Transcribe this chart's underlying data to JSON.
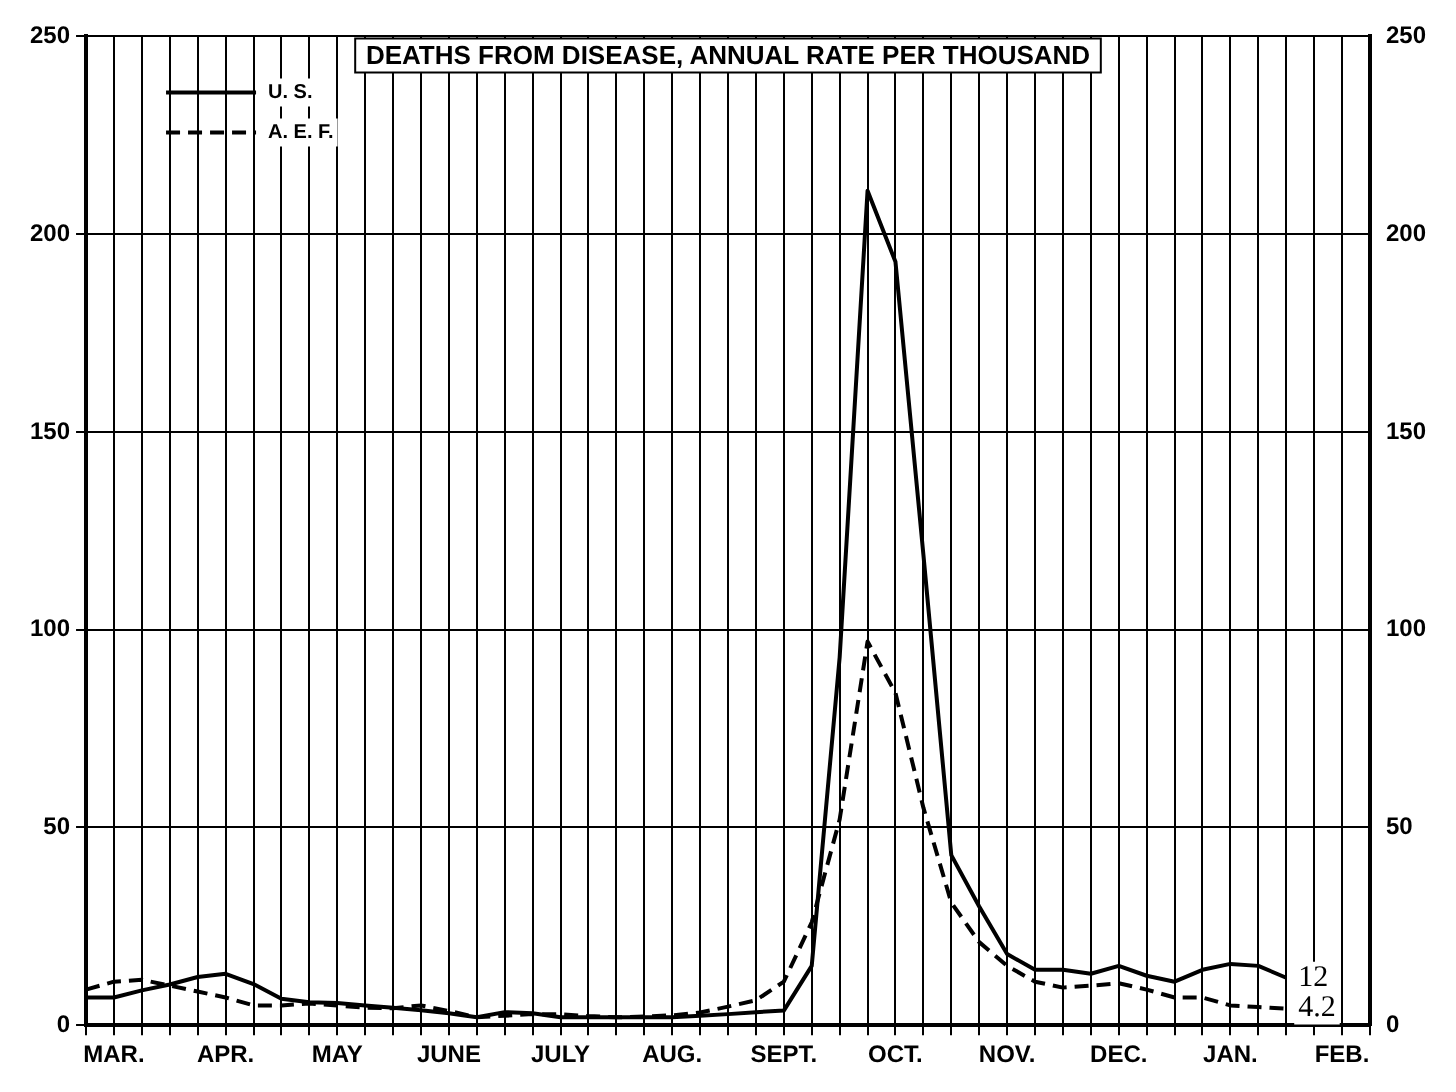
{
  "chart_data": {
    "type": "line",
    "title": "DEATHS FROM DISEASE, ANNUAL RATE PER THOUSAND",
    "categories": [
      null,
      "MAR.",
      null,
      null,
      null,
      "APR.",
      null,
      null,
      null,
      "MAY",
      null,
      null,
      null,
      "JUNE",
      null,
      null,
      null,
      "JULY",
      null,
      null,
      null,
      "AUG.",
      null,
      null,
      null,
      "SEPT.",
      null,
      null,
      null,
      "OCT.",
      null,
      null,
      null,
      "NOV.",
      null,
      null,
      null,
      "DEC.",
      null,
      null,
      null,
      "JAN.",
      null,
      null,
      null,
      "FEB.",
      null
    ],
    "ylim": [
      0,
      250
    ],
    "yticks": [
      0,
      50,
      100,
      150,
      200,
      250
    ],
    "y2lim": [
      0,
      250
    ],
    "y2ticks": [
      0,
      50,
      100,
      150,
      200,
      250
    ],
    "grid": true,
    "legend": "top left",
    "marker": "none",
    "series": [
      {
        "name": "U. S.",
        "color": "#000000",
        "line_style": "solid",
        "values": [
          7,
          7,
          8.8,
          10.3,
          12.2,
          13,
          10.4,
          6.7,
          5.8,
          5.6,
          5,
          4.4,
          3.8,
          3,
          2,
          3.3,
          3,
          2,
          2,
          2,
          2,
          2,
          2.4,
          2.8,
          3.3,
          3.7,
          15,
          93,
          211,
          193,
          119,
          43,
          30,
          18,
          14,
          14,
          13,
          15,
          12.5,
          11,
          14,
          15.5,
          15,
          12,
          null,
          null,
          null
        ],
        "value_labels": [
          null,
          null,
          null,
          null,
          null,
          null,
          null,
          null,
          null,
          null,
          null,
          null,
          null,
          null,
          null,
          null,
          null,
          null,
          null,
          null,
          null,
          null,
          null,
          null,
          null,
          null,
          null,
          null,
          null,
          null,
          null,
          null,
          null,
          null,
          null,
          null,
          null,
          null,
          null,
          null,
          null,
          null,
          null,
          "12",
          null,
          null,
          null
        ]
      },
      {
        "name": "A. E. F.",
        "color": "#000000",
        "line_style": "dashed",
        "values": [
          9,
          11,
          11.5,
          10,
          8.5,
          7,
          5,
          5,
          5.5,
          5,
          4.4,
          4.3,
          5,
          3.6,
          2,
          2.4,
          2.8,
          2.8,
          2.3,
          2,
          2.2,
          2.5,
          3.2,
          4.7,
          6.3,
          11,
          26,
          52,
          97,
          84,
          55,
          31,
          21,
          15,
          11,
          9.5,
          10,
          10.6,
          9,
          7,
          7,
          5,
          4.6,
          4.2,
          null,
          null,
          null
        ],
        "value_labels": [
          null,
          null,
          null,
          null,
          null,
          null,
          null,
          null,
          null,
          null,
          null,
          null,
          null,
          null,
          null,
          null,
          null,
          null,
          null,
          null,
          null,
          null,
          null,
          null,
          null,
          null,
          null,
          null,
          null,
          null,
          null,
          null,
          null,
          null,
          null,
          null,
          null,
          null,
          null,
          null,
          null,
          null,
          null,
          "4.2",
          null,
          null,
          null
        ]
      }
    ]
  }
}
